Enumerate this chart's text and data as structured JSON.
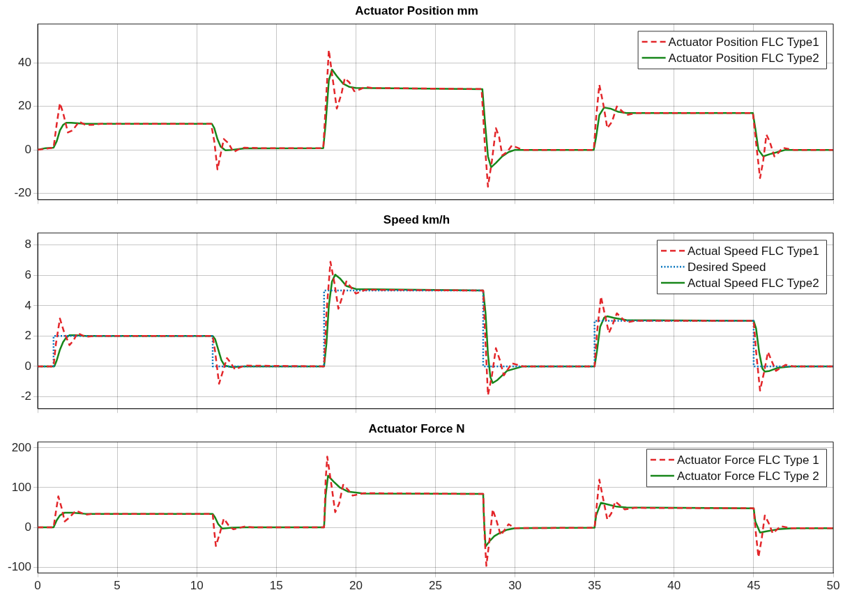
{
  "chart_data": [
    {
      "type": "line",
      "title": "Actuator Position mm",
      "xlim": [
        0,
        50
      ],
      "xticks": [
        0,
        5,
        10,
        15,
        20,
        25,
        30,
        35,
        40,
        45,
        50
      ],
      "ylim": [
        -23,
        58
      ],
      "yticks": [
        -20,
        0,
        20,
        40
      ],
      "grid": true,
      "legend": "top right",
      "marker": "none",
      "tick_labels": "y",
      "series": [
        {
          "name": "Actuator Position FLC Type1",
          "color": "#e3262a",
          "line_style": "dashed",
          "x": [
            0,
            0.5,
            1,
            1.2,
            1.4,
            1.6,
            1.9,
            2.2,
            2.6,
            3,
            3.4,
            4,
            10.9,
            11.1,
            11.3,
            11.5,
            11.7,
            12,
            12.3,
            12.7,
            13,
            14,
            17.95,
            18.1,
            18.3,
            18.5,
            18.8,
            19.1,
            19.3,
            19.6,
            19.9,
            20.3,
            20.6,
            21,
            27.9,
            28.1,
            28.3,
            28.55,
            28.8,
            29,
            29.2,
            29.5,
            29.8,
            30.5,
            34.95,
            35.1,
            35.3,
            35.55,
            35.8,
            36.1,
            36.4,
            36.7,
            37,
            37.6,
            44.95,
            45.2,
            45.4,
            45.6,
            45.8,
            46,
            46.3,
            46.6,
            46.8,
            47.5,
            50
          ],
          "values": [
            0,
            0.5,
            1,
            12,
            21.5,
            17,
            8,
            9,
            13,
            11.5,
            11.5,
            12,
            12,
            4,
            -9,
            -2,
            5,
            3,
            -1,
            0.5,
            1,
            0.8,
            0.8,
            20,
            46,
            35,
            19,
            26,
            33,
            31,
            27,
            28,
            29,
            28.5,
            28,
            3,
            -17,
            -5,
            10,
            6,
            -2.5,
            -1,
            2,
            0,
            0,
            15,
            30,
            21,
            10,
            13,
            20,
            18,
            16,
            17,
            17,
            0,
            -13,
            -5,
            7,
            4,
            -3,
            -1,
            1,
            0,
            0
          ]
        },
        {
          "name": "Actuator Position FLC Type2",
          "color": "#17861a",
          "line_style": "solid",
          "x": [
            0,
            0.5,
            1,
            1.2,
            1.4,
            1.6,
            1.8,
            2.1,
            3,
            10.95,
            11.1,
            11.3,
            11.5,
            11.8,
            12.2,
            13,
            17.95,
            18.1,
            18.3,
            18.5,
            18.8,
            19.2,
            19.6,
            20,
            27.95,
            28.1,
            28.3,
            28.5,
            28.8,
            29.2,
            29.6,
            30,
            34.95,
            35.1,
            35.3,
            35.6,
            36,
            36.5,
            37,
            44.95,
            45.1,
            45.3,
            45.6,
            46,
            46.5,
            47,
            50
          ],
          "values": [
            0,
            0.8,
            1,
            4,
            9,
            11.5,
            12.5,
            12.5,
            12,
            12,
            10,
            5,
            1.5,
            -0.2,
            0,
            0.7,
            0.8,
            12,
            32,
            37,
            34,
            30.5,
            29,
            28.5,
            28,
            14,
            -3,
            -8,
            -6,
            -3,
            -1,
            0,
            0,
            6,
            16,
            19.5,
            19,
            17.5,
            17,
            17,
            10,
            0,
            -3,
            -2,
            -1,
            0,
            0
          ]
        }
      ]
    },
    {
      "type": "line",
      "title": "Speed km/h",
      "xlim": [
        0,
        50
      ],
      "xticks": [
        0,
        5,
        10,
        15,
        20,
        25,
        30,
        35,
        40,
        45,
        50
      ],
      "ylim": [
        -2.8,
        8.8
      ],
      "yticks": [
        -2,
        0,
        2,
        4,
        6,
        8
      ],
      "grid": true,
      "legend": "top right",
      "marker": "none",
      "tick_labels": "y",
      "series": [
        {
          "name": "Actual Speed FLC Type1",
          "color": "#e3262a",
          "line_style": "dashed",
          "x": [
            0,
            1,
            1.15,
            1.4,
            1.65,
            2,
            2.25,
            2.5,
            3,
            3.5,
            11,
            11.15,
            11.4,
            11.65,
            11.9,
            12.15,
            12.4,
            13,
            18,
            18.15,
            18.4,
            18.65,
            18.9,
            19.15,
            19.4,
            20,
            20.6,
            28,
            28.15,
            28.3,
            28.55,
            28.8,
            29.05,
            29.3,
            29.8,
            30.5,
            35,
            35.15,
            35.4,
            35.65,
            35.9,
            36.15,
            36.4,
            37,
            37.5,
            45,
            45.15,
            45.4,
            45.65,
            45.9,
            46.15,
            46.4,
            47,
            47.5,
            50
          ],
          "values": [
            0,
            0,
            1.5,
            3.15,
            2.3,
            1.4,
            1.7,
            2.2,
            1.95,
            2,
            2,
            1,
            -1.15,
            -0.3,
            0.55,
            0.2,
            -0.2,
            0.05,
            0,
            3.5,
            6.9,
            5.5,
            3.8,
            4.6,
            5.6,
            4.8,
            5.05,
            5,
            1.5,
            -1.9,
            -0.6,
            1.2,
            0.4,
            -0.6,
            0.2,
            0,
            0,
            2.2,
            4.6,
            3.4,
            2.2,
            2.8,
            3.5,
            2.9,
            3,
            3,
            1,
            -1.6,
            -0.4,
            0.95,
            0.3,
            -0.3,
            0.1,
            0,
            0
          ]
        },
        {
          "name": "Desired Speed",
          "color": "#0072bd",
          "line_style": "dotted",
          "x": [
            0,
            1,
            1,
            11,
            11,
            18,
            18,
            28,
            28,
            35,
            35,
            45,
            45,
            50
          ],
          "values": [
            0,
            0,
            2,
            2,
            0,
            0,
            5,
            5,
            0,
            0,
            3,
            3,
            0,
            0
          ]
        },
        {
          "name": "Actual Speed FLC Type2",
          "color": "#17861a",
          "line_style": "solid",
          "x": [
            0,
            1.05,
            1.2,
            1.4,
            1.6,
            1.8,
            2,
            2.4,
            3,
            11,
            11.15,
            11.35,
            11.55,
            11.75,
            12.2,
            13,
            18,
            18.15,
            18.3,
            18.5,
            18.7,
            19,
            19.4,
            20,
            28,
            28.15,
            28.3,
            28.45,
            28.6,
            28.9,
            29.5,
            30.5,
            35,
            35.15,
            35.35,
            35.6,
            35.8,
            36.2,
            37,
            45,
            45.15,
            45.35,
            45.55,
            45.7,
            46,
            46.5,
            47.5,
            50
          ],
          "values": [
            0,
            0,
            0.4,
            1.1,
            1.6,
            1.9,
            2.05,
            2.05,
            2,
            2,
            1.8,
            1.1,
            0.4,
            0.05,
            -0.05,
            0,
            0,
            1.5,
            4,
            5.6,
            6.05,
            5.8,
            5.3,
            5.1,
            5,
            3.5,
            0.8,
            -0.7,
            -1.1,
            -0.9,
            -0.3,
            0,
            0,
            1,
            2.6,
            3.2,
            3.3,
            3.2,
            3.05,
            3,
            2.5,
            0.9,
            -0.15,
            -0.35,
            -0.3,
            -0.1,
            0,
            0
          ]
        }
      ]
    },
    {
      "type": "line",
      "title": "Actuator Force N",
      "xlim": [
        0,
        50
      ],
      "xticks": [
        0,
        5,
        10,
        15,
        20,
        25,
        30,
        35,
        40,
        45,
        50
      ],
      "ylim": [
        -115,
        215
      ],
      "yticks": [
        -100,
        0,
        100,
        200
      ],
      "grid": true,
      "legend": "top right",
      "marker": "none",
      "series": [
        {
          "name": "Actuator Force FLC Type 1",
          "color": "#e3262a",
          "line_style": "dashed",
          "x": [
            0,
            1,
            1.15,
            1.3,
            1.5,
            1.7,
            2,
            2.4,
            3,
            3.5,
            11,
            11.1,
            11.2,
            11.45,
            11.7,
            12,
            12.3,
            13,
            13.5,
            18,
            18.1,
            18.2,
            18.45,
            18.7,
            18.95,
            19.2,
            19.5,
            19.8,
            20.5,
            28,
            28.1,
            28.2,
            28.4,
            28.6,
            28.85,
            29.1,
            29.6,
            30,
            35,
            35.15,
            35.3,
            35.55,
            35.8,
            36.05,
            36.3,
            36.9,
            37.5,
            45,
            45.15,
            45.3,
            45.5,
            45.7,
            45.95,
            46.2,
            46.7,
            47.3,
            50
          ],
          "values": [
            0,
            0,
            40,
            78,
            50,
            15,
            25,
            42,
            32,
            34,
            34,
            -10,
            -47,
            -15,
            22,
            5,
            -5,
            2,
            0,
            0,
            120,
            178,
            110,
            38,
            60,
            107,
            95,
            80,
            86,
            84,
            -30,
            -97,
            -30,
            45,
            15,
            -20,
            8,
            -2,
            -1,
            60,
            120,
            70,
            20,
            35,
            65,
            45,
            49,
            48,
            -20,
            -75,
            -30,
            30,
            10,
            -15,
            3,
            -2,
            -2
          ]
        },
        {
          "name": "Actuator Force FLC Type 2",
          "color": "#17861a",
          "line_style": "solid",
          "x": [
            0,
            1,
            1.2,
            1.4,
            1.7,
            2.2,
            3,
            11,
            11.15,
            11.35,
            11.6,
            12.2,
            13,
            18,
            18.1,
            18.25,
            18.6,
            19,
            19.5,
            20.5,
            28,
            28.05,
            28.15,
            28.4,
            28.7,
            29,
            29.5,
            30,
            35,
            35.1,
            35.4,
            35.8,
            36.4,
            37,
            45,
            45.1,
            45.4,
            45.8,
            46.5,
            47.5,
            50
          ],
          "values": [
            0,
            0,
            18,
            30,
            37,
            37,
            34,
            34,
            25,
            8,
            -3,
            -1,
            0,
            0,
            80,
            130,
            115,
            100,
            90,
            85,
            84,
            20,
            -48,
            -35,
            -22,
            -15,
            -6,
            -2,
            -1,
            30,
            62,
            58,
            52,
            50,
            48,
            15,
            -13,
            -10,
            -5,
            -2,
            -2
          ]
        }
      ]
    }
  ]
}
